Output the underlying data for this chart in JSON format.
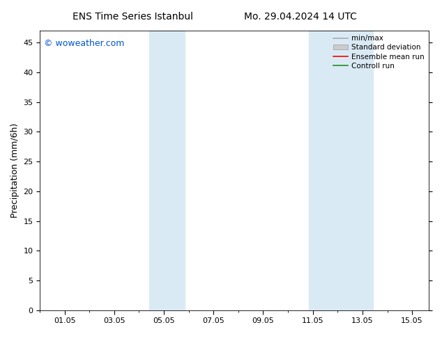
{
  "title_left": "ENS Time Series Istanbul",
  "title_right": "Mo. 29.04.2024 14 UTC",
  "ylabel": "Precipitation (mm/6h)",
  "xlabel": "",
  "watermark": "© woweather.com",
  "watermark_color": "#0055cc",
  "background_color": "#ffffff",
  "plot_bg_color": "#ffffff",
  "ylim": [
    0,
    47
  ],
  "yticks": [
    0,
    5,
    10,
    15,
    20,
    25,
    30,
    35,
    40,
    45
  ],
  "xtick_labels": [
    "01.05",
    "03.05",
    "05.05",
    "07.05",
    "09.05",
    "11.05",
    "13.05",
    "15.05"
  ],
  "xtick_positions": [
    1.0,
    3.0,
    5.0,
    7.0,
    9.0,
    11.0,
    13.0,
    15.0
  ],
  "xlim": [
    0.0,
    15.67
  ],
  "shaded_regions": [
    {
      "xmin": 4.42,
      "xmax": 5.83,
      "color": "#daeaf5",
      "alpha": 1.0
    },
    {
      "xmin": 10.83,
      "xmax": 13.42,
      "color": "#daeaf5",
      "alpha": 1.0
    }
  ],
  "legend_entries": [
    {
      "label": "min/max",
      "color": "#aaaaaa",
      "type": "line"
    },
    {
      "label": "Standard deviation",
      "color": "#cccccc",
      "type": "patch"
    },
    {
      "label": "Ensemble mean run",
      "color": "#ff0000",
      "type": "line"
    },
    {
      "label": "Controll run",
      "color": "#228b22",
      "type": "line"
    }
  ],
  "title_fontsize": 10,
  "ylabel_fontsize": 9,
  "tick_fontsize": 8,
  "watermark_fontsize": 9,
  "legend_fontsize": 7.5
}
